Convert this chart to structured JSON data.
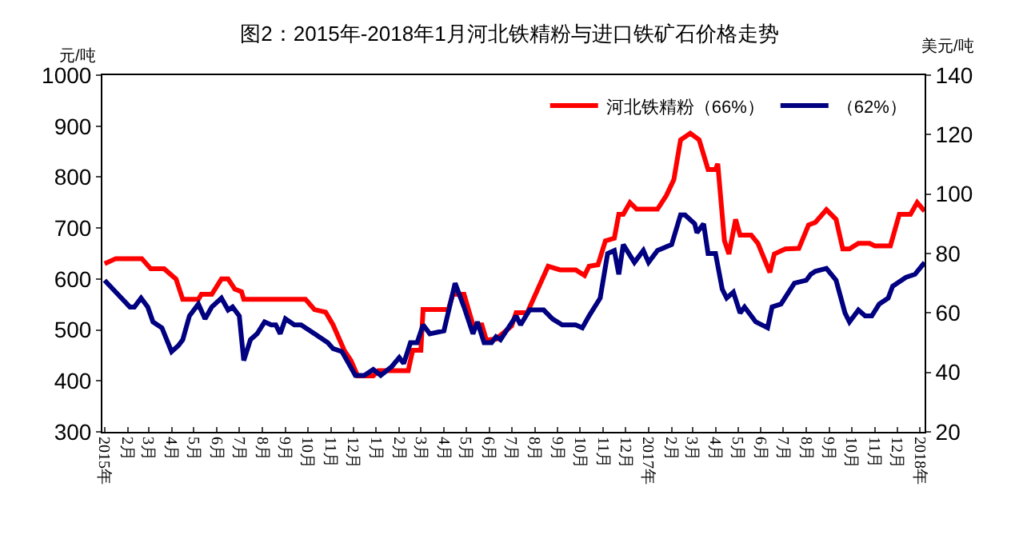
{
  "chart_data": {
    "type": "line",
    "title": "图2：2015年-2018年1月河北铁精粉与进口铁矿石价格走势",
    "ylabel": "元/吨",
    "y2label": "美元/吨",
    "xlim": [
      "2014-12-29",
      "2018-01-07"
    ],
    "xticks": [
      {
        "value": "2015-01-01",
        "label": "2015年"
      },
      {
        "value": "2015-02-01",
        "label": "2月"
      },
      {
        "value": "2015-03-01",
        "label": "3月"
      },
      {
        "value": "2015-04-01",
        "label": "4月"
      },
      {
        "value": "2015-05-01",
        "label": "5月"
      },
      {
        "value": "2015-06-01",
        "label": "6月"
      },
      {
        "value": "2015-07-01",
        "label": "7月"
      },
      {
        "value": "2015-08-01",
        "label": "8月"
      },
      {
        "value": "2015-09-01",
        "label": "9月"
      },
      {
        "value": "2015-10-01",
        "label": "10月"
      },
      {
        "value": "2015-11-01",
        "label": "11月"
      },
      {
        "value": "2015-12-01",
        "label": "12月"
      },
      {
        "value": "2016-01-01",
        "label": "1月"
      },
      {
        "value": "2016-02-01",
        "label": "2月"
      },
      {
        "value": "2016-03-01",
        "label": "3月"
      },
      {
        "value": "2016-04-01",
        "label": "4月"
      },
      {
        "value": "2016-05-01",
        "label": "5月"
      },
      {
        "value": "2016-06-01",
        "label": "6月"
      },
      {
        "value": "2016-07-01",
        "label": "7月"
      },
      {
        "value": "2016-08-01",
        "label": "8月"
      },
      {
        "value": "2016-09-01",
        "label": "9月"
      },
      {
        "value": "2016-10-01",
        "label": "10月"
      },
      {
        "value": "2016-11-01",
        "label": "11月"
      },
      {
        "value": "2016-12-01",
        "label": "12月"
      },
      {
        "value": "2017-01-01",
        "label": "2017年"
      },
      {
        "value": "2017-02-01",
        "label": "2月"
      },
      {
        "value": "2017-03-01",
        "label": "3月"
      },
      {
        "value": "2017-04-01",
        "label": "4月"
      },
      {
        "value": "2017-05-01",
        "label": "5月"
      },
      {
        "value": "2017-06-01",
        "label": "6月"
      },
      {
        "value": "2017-07-01",
        "label": "7月"
      },
      {
        "value": "2017-08-01",
        "label": "8月"
      },
      {
        "value": "2017-09-01",
        "label": "9月"
      },
      {
        "value": "2017-10-01",
        "label": "10月"
      },
      {
        "value": "2017-11-01",
        "label": "11月"
      },
      {
        "value": "2017-12-01",
        "label": "12月"
      },
      {
        "value": "2018-01-01",
        "label": "2018年"
      }
    ],
    "ylim": [
      300,
      1000
    ],
    "yticks": [
      300,
      400,
      500,
      600,
      700,
      800,
      900,
      1000
    ],
    "y2lim": [
      20,
      140
    ],
    "y2ticks": [
      20,
      40,
      60,
      80,
      100,
      120,
      140
    ],
    "grid": false,
    "legend": "top right",
    "marker": "none",
    "line_style": "solid",
    "series": [
      {
        "name": "河北铁精粉（66%）",
        "color": "#ff0000",
        "x": [
          "2015-01-01",
          "2015-01-16",
          "2015-02-20",
          "2015-03-04",
          "2015-03-22",
          "2015-04-07",
          "2015-04-16",
          "2015-05-07",
          "2015-05-11",
          "2015-05-25",
          "2015-06-07",
          "2015-06-16",
          "2015-06-25",
          "2015-07-04",
          "2015-07-07",
          "2015-09-28",
          "2015-10-10",
          "2015-10-25",
          "2015-11-04",
          "2015-11-19",
          "2015-11-28",
          "2015-12-07",
          "2015-12-28",
          "2016-01-04",
          "2016-02-13",
          "2016-02-19",
          "2016-03-01",
          "2016-03-04",
          "2016-04-07",
          "2016-04-13",
          "2016-04-28",
          "2016-05-10",
          "2016-05-22",
          "2016-05-28",
          "2016-06-10",
          "2016-07-01",
          "2016-07-07",
          "2016-07-22",
          "2016-08-07",
          "2016-08-19",
          "2016-09-04",
          "2016-09-25",
          "2016-10-07",
          "2016-10-13",
          "2016-10-25",
          "2016-11-04",
          "2016-11-16",
          "2016-11-22",
          "2016-11-28",
          "2016-12-07",
          "2016-12-16",
          "2017-01-13",
          "2017-01-25",
          "2017-02-04",
          "2017-02-13",
          "2017-02-26",
          "2017-03-10",
          "2017-03-22",
          "2017-04-01",
          "2017-04-04",
          "2017-04-13",
          "2017-04-19",
          "2017-04-28",
          "2017-05-04",
          "2017-05-19",
          "2017-05-28",
          "2017-06-13",
          "2017-06-19",
          "2017-07-04",
          "2017-07-22",
          "2017-08-04",
          "2017-08-13",
          "2017-08-28",
          "2017-09-10",
          "2017-09-19",
          "2017-09-28",
          "2017-10-10",
          "2017-10-25",
          "2017-11-01",
          "2017-11-22",
          "2017-12-04",
          "2017-12-19",
          "2017-12-28",
          "2018-01-07"
        ],
        "values": [
          630,
          640,
          640,
          620,
          620,
          600,
          560,
          560,
          570,
          570,
          600,
          600,
          580,
          575,
          560,
          560,
          540,
          535,
          510,
          460,
          440,
          410,
          410,
          420,
          420,
          460,
          460,
          540,
          540,
          570,
          570,
          510,
          510,
          480,
          482,
          508,
          534,
          534,
          586,
          625,
          618,
          618,
          607,
          625,
          628,
          675,
          680,
          727,
          727,
          750,
          737,
          737,
          764,
          795,
          873,
          886,
          873,
          815,
          815,
          826,
          675,
          649,
          717,
          686,
          686,
          670,
          613,
          649,
          659,
          660,
          706,
          711,
          736,
          717,
          659,
          659,
          670,
          670,
          665,
          665,
          727,
          727,
          750,
          733
        ]
      },
      {
        "name": "（62%）",
        "color": "#000080",
        "axis": "y2",
        "x": [
          "2015-01-01",
          "2015-01-16",
          "2015-02-04",
          "2015-02-10",
          "2015-02-19",
          "2015-02-28",
          "2015-03-07",
          "2015-03-19",
          "2015-04-01",
          "2015-04-10",
          "2015-04-16",
          "2015-04-25",
          "2015-05-07",
          "2015-05-16",
          "2015-05-25",
          "2015-06-07",
          "2015-06-16",
          "2015-06-22",
          "2015-07-01",
          "2015-07-07",
          "2015-07-16",
          "2015-07-25",
          "2015-08-04",
          "2015-08-13",
          "2015-08-19",
          "2015-08-25",
          "2015-09-01",
          "2015-09-13",
          "2015-09-22",
          "2015-10-10",
          "2015-10-28",
          "2015-11-04",
          "2015-11-16",
          "2015-11-25",
          "2015-12-04",
          "2015-12-16",
          "2015-12-28",
          "2016-01-07",
          "2016-01-22",
          "2016-02-01",
          "2016-02-07",
          "2016-02-16",
          "2016-02-25",
          "2016-03-04",
          "2016-03-13",
          "2016-04-01",
          "2016-04-16",
          "2016-04-28",
          "2016-05-10",
          "2016-05-16",
          "2016-05-25",
          "2016-06-04",
          "2016-06-10",
          "2016-06-16",
          "2016-07-07",
          "2016-07-13",
          "2016-07-25",
          "2016-08-13",
          "2016-08-25",
          "2016-09-07",
          "2016-09-25",
          "2016-10-04",
          "2016-10-13",
          "2016-10-28",
          "2016-11-07",
          "2016-11-16",
          "2016-11-22",
          "2016-11-28",
          "2016-12-13",
          "2016-12-25",
          "2017-01-01",
          "2017-01-13",
          "2017-02-01",
          "2017-02-13",
          "2017-02-19",
          "2017-03-04",
          "2017-03-07",
          "2017-03-16",
          "2017-03-22",
          "2017-04-01",
          "2017-04-10",
          "2017-04-16",
          "2017-04-25",
          "2017-05-04",
          "2017-05-10",
          "2017-05-19",
          "2017-05-25",
          "2017-06-10",
          "2017-06-16",
          "2017-06-28",
          "2017-07-16",
          "2017-08-01",
          "2017-08-07",
          "2017-08-13",
          "2017-08-28",
          "2017-09-10",
          "2017-09-22",
          "2017-09-28",
          "2017-10-10",
          "2017-10-19",
          "2017-10-28",
          "2017-11-07",
          "2017-11-19",
          "2017-11-25",
          "2017-12-13",
          "2017-12-25",
          "2018-01-07"
        ],
        "values": [
          71,
          67,
          62,
          62,
          65,
          62,
          57,
          55,
          47,
          49,
          51,
          59,
          63,
          58,
          62,
          65,
          61,
          62,
          59,
          44,
          51,
          53,
          57,
          56,
          56,
          53,
          58,
          56,
          56,
          53,
          50,
          48,
          47,
          43,
          39,
          39,
          41,
          39,
          42,
          45,
          43,
          50,
          50,
          56,
          53,
          54,
          70,
          62,
          53,
          57,
          50,
          50,
          52,
          51,
          59,
          56,
          61,
          61,
          58,
          56,
          56,
          55,
          59,
          65,
          80,
          81,
          73,
          83,
          77,
          81,
          77,
          81,
          83,
          93,
          93,
          90,
          87,
          90,
          80,
          80,
          68,
          65,
          67,
          60,
          62,
          59,
          57,
          55,
          62,
          63,
          70,
          71,
          73,
          74,
          75,
          71,
          60,
          57,
          61,
          59,
          59,
          63,
          65,
          69,
          72,
          73,
          77
        ]
      }
    ]
  }
}
